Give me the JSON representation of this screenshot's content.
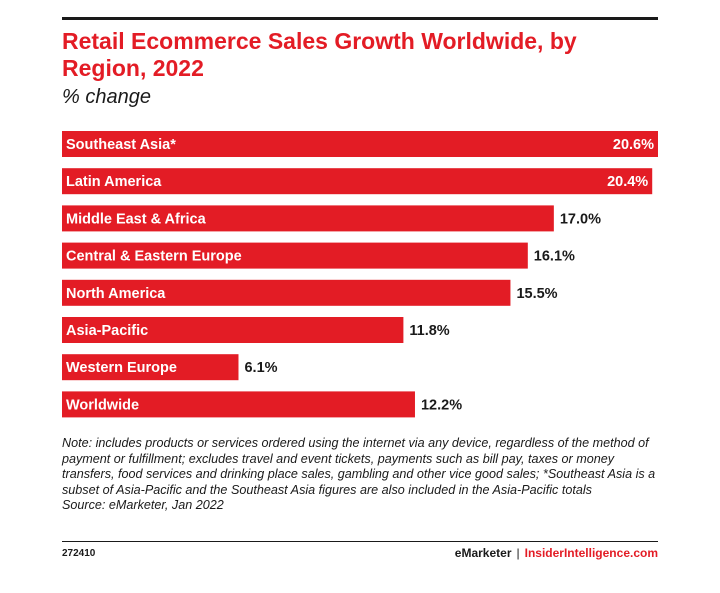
{
  "chart_data": {
    "type": "bar",
    "orientation": "horizontal",
    "title": "Retail Ecommerce Sales Growth Worldwide, by Region, 2022",
    "subtitle": "% change",
    "categories": [
      "Southeast Asia*",
      "Latin America",
      "Middle East & Africa",
      "Central & Eastern Europe",
      "North America",
      "Asia-Pacific",
      "Western Europe",
      "Worldwide"
    ],
    "values": [
      20.6,
      20.4,
      17.0,
      16.1,
      15.5,
      11.8,
      6.1,
      12.2
    ],
    "value_labels": [
      "20.6%",
      "20.4%",
      "17.0%",
      "16.1%",
      "15.5%",
      "11.8%",
      "6.1%",
      "12.2%"
    ],
    "xlim": [
      0,
      20.6
    ],
    "bar_color": "#e31c25",
    "grid": false
  },
  "note": "Note: includes products or services ordered using the internet via any device, regardless of the method of payment or fulfillment; excludes travel and event tickets, payments such as bill pay, taxes or money transfers, food services and drinking place sales, gambling and other vice good sales; *Southeast Asia is a subset of Asia-Pacific and the Southeast Asia figures are also included in the Asia-Pacific totals",
  "source": "Source: eMarketer, Jan 2022",
  "footer": {
    "chart_id": "272410",
    "brand": "eMarketer",
    "separator": "|",
    "site": "InsiderIntelligence.com"
  }
}
